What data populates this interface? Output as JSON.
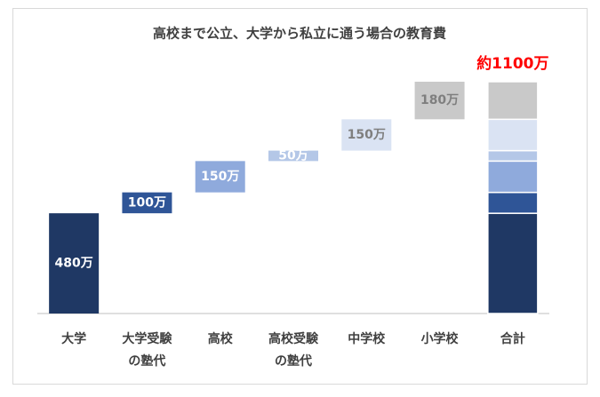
{
  "chart_data": {
    "type": "waterfall",
    "title": "高校まで公立、大学から私立に通う場合の教育費",
    "categories": [
      "大学",
      [
        "大学受験",
        "の塾代"
      ],
      "高校",
      [
        "高校受験",
        "の塾代"
      ],
      "中学校",
      "小学校",
      "合計"
    ],
    "values": [
      480,
      100,
      150,
      50,
      150,
      180,
      null
    ],
    "value_labels": [
      "480万",
      "100万",
      "150万",
      "50万",
      "150万",
      "180万",
      null
    ],
    "colors": [
      "#1f3864",
      "#2f5597",
      "#8faadc",
      "#b4c7e7",
      "#dae3f3",
      "#c9c9c9",
      null
    ],
    "label_colors": [
      "#ffffff",
      "#ffffff",
      "#ffffff",
      "#ffffff",
      "#7f7f7f",
      "#7f7f7f",
      null
    ],
    "total_annotation": "約1100万",
    "annotation_color": "#ff0000"
  }
}
